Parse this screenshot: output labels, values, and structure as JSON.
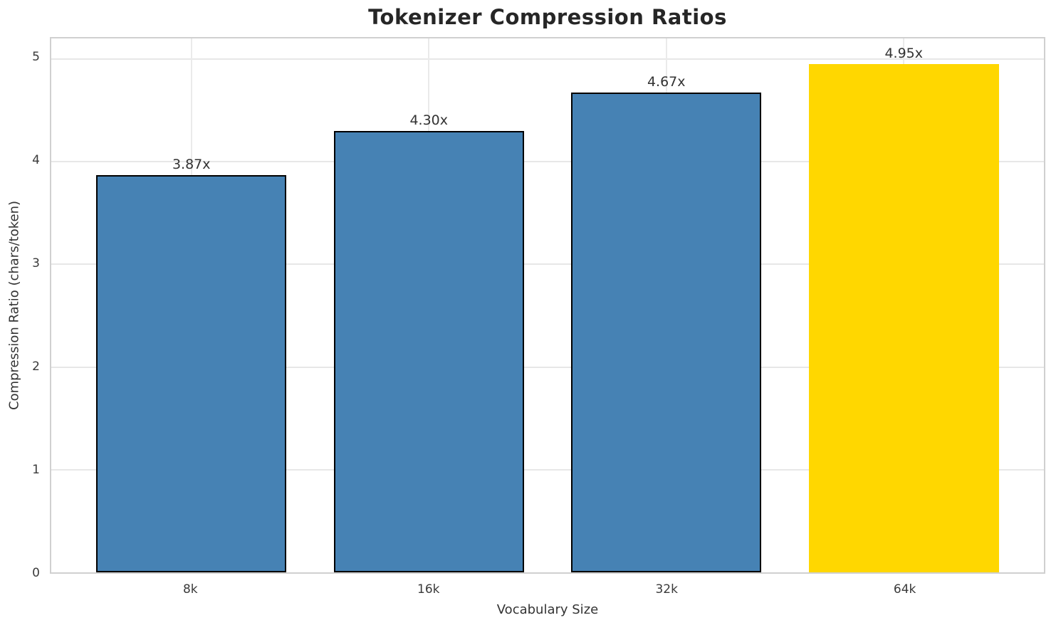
{
  "chart_data": {
    "type": "bar",
    "title": "Tokenizer Compression Ratios",
    "xlabel": "Vocabulary Size",
    "ylabel": "Compression Ratio (chars/token)",
    "categories": [
      "8k",
      "16k",
      "32k",
      "64k"
    ],
    "values": [
      3.87,
      4.3,
      4.67,
      4.95
    ],
    "bar_labels": [
      "3.87x",
      "4.30x",
      "4.67x",
      "4.95x"
    ],
    "bar_colors": [
      "#4682b4",
      "#4682b4",
      "#4682b4",
      "#ffd700"
    ],
    "bar_edge_colors": [
      "#000000",
      "#000000",
      "#000000",
      null
    ],
    "highlight_index": 3,
    "ylim": [
      0,
      5.2
    ],
    "yticks": [
      0,
      1,
      2,
      3,
      4,
      5
    ],
    "grid": true,
    "legend": null
  },
  "colors": {
    "bar_blue": "#4682b4",
    "bar_gold": "#ffd700",
    "grid": "#e7e7e7",
    "spine": "#d0d0d0",
    "text": "#333333",
    "title_text": "#262626"
  }
}
